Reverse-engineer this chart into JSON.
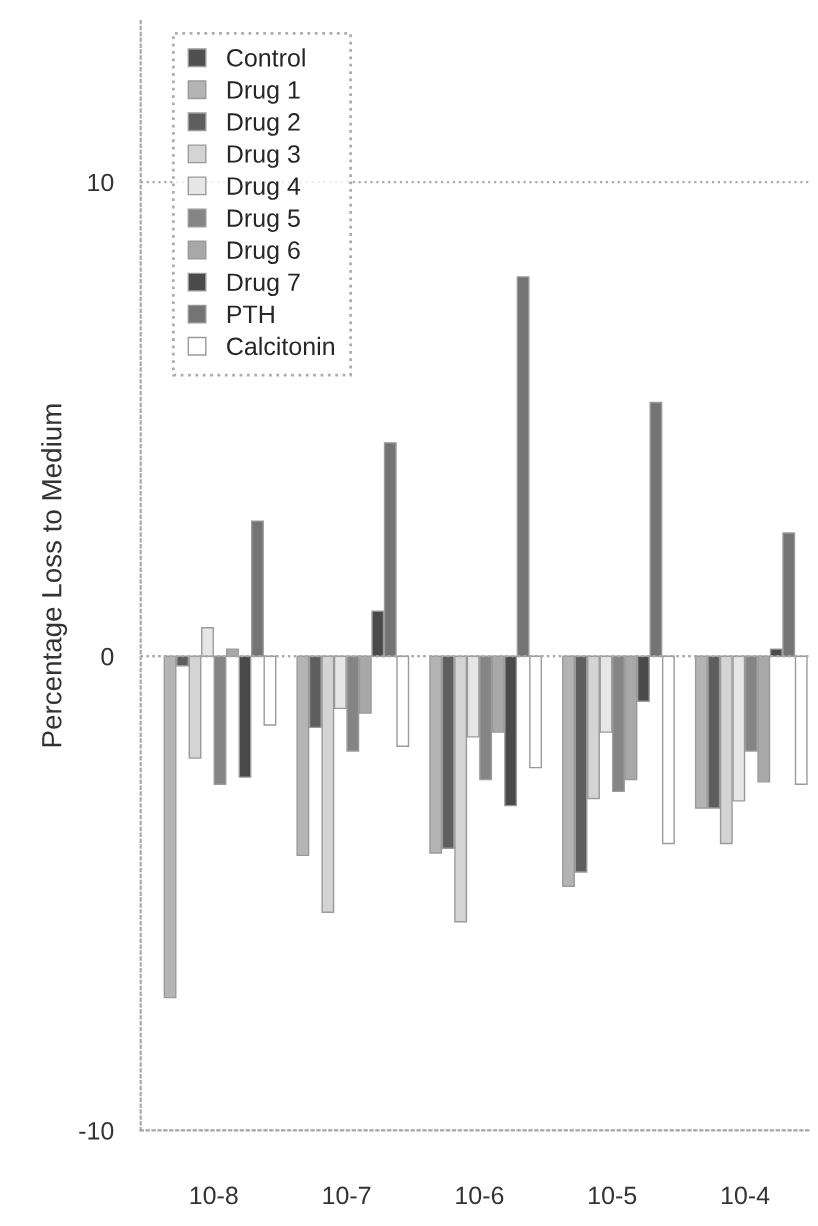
{
  "chart_data": {
    "type": "bar",
    "ylabel": "Percentage Loss to Medium",
    "categories": [
      "10-8",
      "10-7",
      "10-6",
      "10-5",
      "10-4"
    ],
    "series": [
      {
        "name": "Control",
        "color": "#505050",
        "values": [
          null,
          null,
          null,
          null,
          null
        ]
      },
      {
        "name": "Drug 1",
        "color": "#b4b4b4",
        "values": [
          -7.2,
          -4.2,
          -4.15,
          -4.85,
          -3.2
        ]
      },
      {
        "name": "Drug 2",
        "color": "#5e5e5e",
        "values": [
          -0.2,
          -1.5,
          -4.05,
          -4.55,
          -3.2
        ]
      },
      {
        "name": "Drug 3",
        "color": "#d4d4d4",
        "values": [
          -2.15,
          -5.4,
          -5.6,
          -3.0,
          -3.95
        ]
      },
      {
        "name": "Drug 4",
        "color": "#e6e6e6",
        "values": [
          0.6,
          -1.1,
          -1.7,
          -1.6,
          -3.05
        ]
      },
      {
        "name": "Drug 5",
        "color": "#858585",
        "values": [
          -2.7,
          -2.0,
          -2.6,
          -2.85,
          -2.0
        ]
      },
      {
        "name": "Drug 6",
        "color": "#a8a8a8",
        "values": [
          0.15,
          -1.2,
          -1.6,
          -2.6,
          -2.65
        ]
      },
      {
        "name": "Drug 7",
        "color": "#4a4a4a",
        "values": [
          -2.55,
          0.95,
          -3.15,
          -0.95,
          0.15
        ]
      },
      {
        "name": "PTH",
        "color": "#747474",
        "values": [
          2.85,
          4.5,
          8.0,
          5.35,
          2.6
        ]
      },
      {
        "name": "Calcitonin",
        "color": "#ffffff",
        "values": [
          -1.45,
          -1.9,
          -2.35,
          -3.95,
          -2.7
        ]
      }
    ],
    "ylim": [
      -10,
      13.4
    ],
    "yticks": [
      -10,
      0,
      10
    ],
    "grid": "y",
    "legend": "top left"
  }
}
